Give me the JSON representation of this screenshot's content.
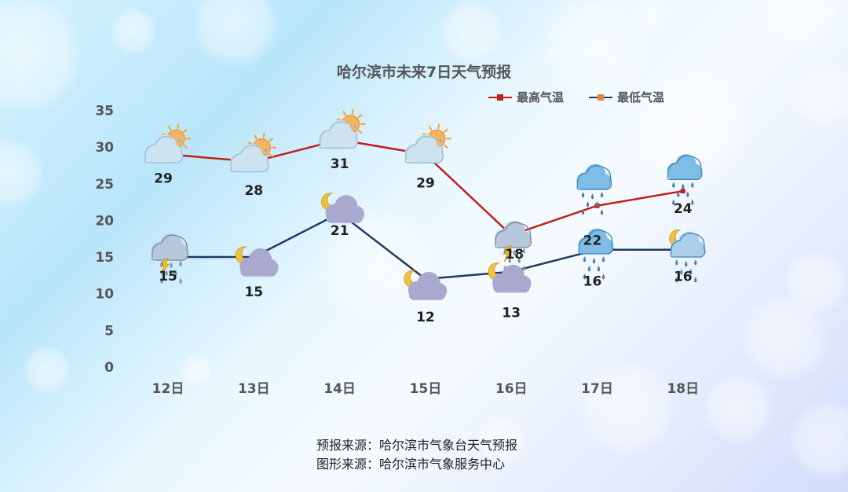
{
  "chart_data": {
    "type": "line",
    "title": "哈尔滨市未来7日天气预报",
    "categories": [
      "12日",
      "13日",
      "14日",
      "15日",
      "16日",
      "17日",
      "18日"
    ],
    "series": [
      {
        "name": "最高气温",
        "values": [
          29,
          28,
          31,
          29,
          18,
          22,
          24
        ],
        "color": "#c0201c"
      },
      {
        "name": "最低气温",
        "values": [
          15,
          15,
          21,
          12,
          13,
          16,
          16
        ],
        "color": "#1f3a66"
      }
    ],
    "marker_colors": {
      "最高气温": "#c0201c",
      "最低气温": "#e8833a"
    },
    "ylim": [
      0,
      35
    ],
    "yticks": [
      0,
      5,
      10,
      15,
      20,
      25,
      30,
      35
    ],
    "legend_position": "top-right",
    "grid": false,
    "weather_icons_high": [
      "sun-cloud-icon",
      "sun-cloud-icon",
      "sun-cloud-icon",
      "sun-cloud-icon",
      "thunderstorm-icon",
      "rain-icon",
      "rain-icon"
    ],
    "weather_icons_low": [
      "thunderstorm-icon",
      "moon-cloud-icon",
      "moon-cloud-icon",
      "moon-cloud-icon",
      "moon-cloud-icon",
      "rain-icon",
      "moon-rain-icon"
    ]
  },
  "footer": {
    "forecast_source": "预报来源：哈尔滨市气象台天气预报",
    "graphic_source": "图形来源：哈尔滨市气象服务中心"
  }
}
